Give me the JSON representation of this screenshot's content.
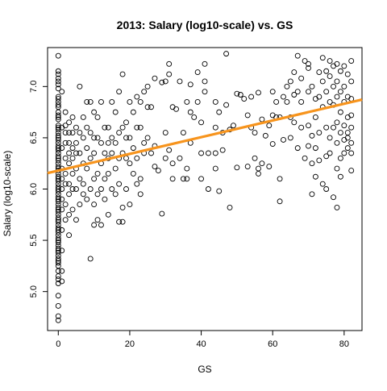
{
  "chart_data": {
    "type": "scatter",
    "title": "2013: Salary (log10-scale) vs. GS",
    "xlabel": "GS",
    "ylabel": "Salary (log10-scale)",
    "xlim": [
      -3,
      85
    ],
    "ylim": [
      4.62,
      7.38
    ],
    "x_ticks": [
      0,
      20,
      40,
      60,
      80
    ],
    "y_ticks": [
      5.0,
      5.5,
      6.0,
      6.5,
      7.0
    ],
    "grid": false,
    "legend": "none",
    "point_color": "#000000",
    "fit_line": {
      "color": "#f7941d",
      "intercept": 6.18,
      "slope": 0.00815
    },
    "points": [
      [
        0,
        7.3
      ],
      [
        0,
        7.15
      ],
      [
        0,
        7.12
      ],
      [
        0,
        7.08
      ],
      [
        0,
        7.05
      ],
      [
        0,
        7.02
      ],
      [
        0,
        6.98
      ],
      [
        0,
        6.9
      ],
      [
        0,
        6.88
      ],
      [
        0,
        6.85
      ],
      [
        0,
        6.82
      ],
      [
        0,
        6.8
      ],
      [
        0,
        6.75
      ],
      [
        0,
        6.72
      ],
      [
        0,
        6.7
      ],
      [
        0,
        6.68
      ],
      [
        0,
        6.62
      ],
      [
        0,
        6.6
      ],
      [
        0,
        6.58
      ],
      [
        0,
        6.55
      ],
      [
        0,
        6.52
      ],
      [
        0,
        6.5
      ],
      [
        0,
        6.48
      ],
      [
        0,
        6.45
      ],
      [
        0,
        6.42
      ],
      [
        0,
        6.4
      ],
      [
        0,
        6.38
      ],
      [
        0,
        6.35
      ],
      [
        0,
        6.32
      ],
      [
        0,
        6.3
      ],
      [
        0,
        6.28
      ],
      [
        0,
        6.25
      ],
      [
        0,
        6.22
      ],
      [
        0,
        6.2
      ],
      [
        0,
        6.18
      ],
      [
        0,
        6.15
      ],
      [
        0,
        6.12
      ],
      [
        0,
        6.1
      ],
      [
        0,
        6.08
      ],
      [
        0,
        6.05
      ],
      [
        0,
        6.02
      ],
      [
        0,
        6.0
      ],
      [
        0,
        5.98
      ],
      [
        0,
        5.95
      ],
      [
        0,
        5.92
      ],
      [
        0,
        5.9
      ],
      [
        0,
        5.88
      ],
      [
        0,
        5.85
      ],
      [
        0,
        5.82
      ],
      [
        0,
        5.8
      ],
      [
        0,
        5.78
      ],
      [
        0,
        5.75
      ],
      [
        0,
        5.72
      ],
      [
        0,
        5.7
      ],
      [
        0,
        5.68
      ],
      [
        0,
        5.65
      ],
      [
        0,
        5.62
      ],
      [
        0,
        5.6
      ],
      [
        0,
        5.58
      ],
      [
        0,
        5.55
      ],
      [
        0,
        5.52
      ],
      [
        0,
        5.5
      ],
      [
        0,
        5.48
      ],
      [
        0,
        5.45
      ],
      [
        0,
        5.42
      ],
      [
        0,
        5.4
      ],
      [
        0,
        5.38
      ],
      [
        0,
        5.35
      ],
      [
        0,
        5.32
      ],
      [
        0,
        5.3
      ],
      [
        0,
        5.28
      ],
      [
        0,
        5.25
      ],
      [
        0,
        5.2
      ],
      [
        0,
        5.15
      ],
      [
        0,
        5.12
      ],
      [
        0,
        5.08
      ],
      [
        0,
        4.96
      ],
      [
        0,
        4.86
      ],
      [
        0,
        4.76
      ],
      [
        0,
        4.72
      ],
      [
        1,
        6.95
      ],
      [
        1,
        6.6
      ],
      [
        1,
        6.4
      ],
      [
        1,
        6.2
      ],
      [
        1,
        6.1
      ],
      [
        1,
        5.9
      ],
      [
        1,
        5.8
      ],
      [
        1,
        5.6
      ],
      [
        1,
        5.4
      ],
      [
        1,
        5.2
      ],
      [
        1,
        5.1
      ],
      [
        1,
        6.0
      ],
      [
        2,
        6.75
      ],
      [
        2,
        6.62
      ],
      [
        2,
        6.55
      ],
      [
        2,
        6.45
      ],
      [
        2,
        6.3
      ],
      [
        2,
        6.15
      ],
      [
        2,
        6.05
      ],
      [
        2,
        5.85
      ],
      [
        2,
        5.7
      ],
      [
        3,
        6.65
      ],
      [
        3,
        6.55
      ],
      [
        3,
        6.45
      ],
      [
        3,
        6.35
      ],
      [
        3,
        6.25
      ],
      [
        3,
        6.05
      ],
      [
        3,
        5.95
      ],
      [
        3,
        5.75
      ],
      [
        3,
        5.55
      ],
      [
        4,
        6.7
      ],
      [
        4,
        6.55
      ],
      [
        4,
        6.4
      ],
      [
        4,
        6.3
      ],
      [
        4,
        6.15
      ],
      [
        4,
        6.0
      ],
      [
        4,
        5.8
      ],
      [
        5,
        6.6
      ],
      [
        5,
        6.45
      ],
      [
        5,
        6.35
      ],
      [
        5,
        6.2
      ],
      [
        5,
        6.0
      ],
      [
        5,
        5.7
      ],
      [
        6,
        7.0
      ],
      [
        6,
        6.55
      ],
      [
        6,
        6.35
      ],
      [
        6,
        6.1
      ],
      [
        6,
        5.85
      ],
      [
        7,
        6.7
      ],
      [
        7,
        6.5
      ],
      [
        7,
        6.25
      ],
      [
        7,
        6.05
      ],
      [
        7,
        5.95
      ],
      [
        8,
        6.85
      ],
      [
        8,
        6.6
      ],
      [
        8,
        6.4
      ],
      [
        8,
        6.2
      ],
      [
        8,
        5.9
      ],
      [
        9,
        6.85
      ],
      [
        9,
        6.55
      ],
      [
        9,
        6.3
      ],
      [
        9,
        6.0
      ],
      [
        9,
        5.32
      ],
      [
        10,
        6.75
      ],
      [
        10,
        6.5
      ],
      [
        10,
        6.35
      ],
      [
        10,
        6.1
      ],
      [
        10,
        5.85
      ],
      [
        10,
        5.65
      ],
      [
        11,
        6.7
      ],
      [
        11,
        6.5
      ],
      [
        11,
        6.15
      ],
      [
        11,
        5.95
      ],
      [
        11,
        5.7
      ],
      [
        12,
        6.85
      ],
      [
        12,
        6.45
      ],
      [
        12,
        6.25
      ],
      [
        12,
        6.0
      ],
      [
        12,
        5.65
      ],
      [
        13,
        6.6
      ],
      [
        13,
        6.35
      ],
      [
        13,
        6.1
      ],
      [
        13,
        5.9
      ],
      [
        14,
        6.6
      ],
      [
        14,
        6.45
      ],
      [
        14,
        6.3
      ],
      [
        14,
        6.15
      ],
      [
        14,
        5.75
      ],
      [
        15,
        6.85
      ],
      [
        15,
        6.5
      ],
      [
        15,
        6.35
      ],
      [
        15,
        6.0
      ],
      [
        16,
        6.75
      ],
      [
        16,
        6.45
      ],
      [
        16,
        6.2
      ],
      [
        16,
        5.95
      ],
      [
        17,
        6.95
      ],
      [
        17,
        6.55
      ],
      [
        17,
        6.3
      ],
      [
        17,
        6.05
      ],
      [
        17,
        5.68
      ],
      [
        18,
        7.12
      ],
      [
        18,
        6.6
      ],
      [
        18,
        6.35
      ],
      [
        18,
        5.82
      ],
      [
        18,
        5.68
      ],
      [
        19,
        6.65
      ],
      [
        19,
        6.5
      ],
      [
        19,
        6.3
      ],
      [
        19,
        6.0
      ],
      [
        20,
        6.85
      ],
      [
        20,
        6.5
      ],
      [
        20,
        6.25
      ],
      [
        20,
        5.85
      ],
      [
        21,
        6.75
      ],
      [
        21,
        6.4
      ],
      [
        21,
        6.15
      ],
      [
        22,
        6.9
      ],
      [
        22,
        6.6
      ],
      [
        22,
        6.3
      ],
      [
        22,
        6.05
      ],
      [
        23,
        6.85
      ],
      [
        23,
        6.6
      ],
      [
        23,
        6.1
      ],
      [
        23,
        5.95
      ],
      [
        24,
        6.95
      ],
      [
        24,
        6.45
      ],
      [
        24,
        6.35
      ],
      [
        25,
        7.0
      ],
      [
        25,
        6.8
      ],
      [
        25,
        6.5
      ],
      [
        26,
        6.8
      ],
      [
        26,
        6.35
      ],
      [
        27,
        7.08
      ],
      [
        27,
        6.42
      ],
      [
        27,
        6.22
      ],
      [
        28,
        6.18
      ],
      [
        29,
        7.04
      ],
      [
        29,
        5.76
      ],
      [
        30,
        7.05
      ],
      [
        30,
        6.55
      ],
      [
        30,
        6.3
      ],
      [
        31,
        7.22
      ],
      [
        31,
        7.12
      ],
      [
        31,
        6.38
      ],
      [
        32,
        6.8
      ],
      [
        32,
        6.25
      ],
      [
        32,
        6.1
      ],
      [
        33,
        6.78
      ],
      [
        34,
        7.05
      ],
      [
        34,
        6.3
      ],
      [
        35,
        6.55
      ],
      [
        35,
        6.1
      ],
      [
        36,
        6.85
      ],
      [
        36,
        6.2
      ],
      [
        36,
        6.1
      ],
      [
        37,
        7.02
      ],
      [
        37,
        6.75
      ],
      [
        37,
        6.45
      ],
      [
        38,
        6.7
      ],
      [
        39,
        7.14
      ],
      [
        39,
        6.85
      ],
      [
        40,
        6.65
      ],
      [
        40,
        6.35
      ],
      [
        40,
        6.1
      ],
      [
        41,
        7.22
      ],
      [
        41,
        7.05
      ],
      [
        41,
        6.95
      ],
      [
        42,
        6.35
      ],
      [
        42,
        6.0
      ],
      [
        44,
        6.85
      ],
      [
        44,
        6.6
      ],
      [
        44,
        6.35
      ],
      [
        44,
        6.2
      ],
      [
        45,
        6.75
      ],
      [
        45,
        5.98
      ],
      [
        46,
        6.55
      ],
      [
        46,
        6.38
      ],
      [
        47,
        7.32
      ],
      [
        47,
        6.82
      ],
      [
        48,
        6.58
      ],
      [
        48,
        5.82
      ],
      [
        49,
        6.62
      ],
      [
        50,
        6.93
      ],
      [
        50,
        6.21
      ],
      [
        51,
        6.92
      ],
      [
        52,
        6.88
      ],
      [
        53,
        6.72
      ],
      [
        53,
        6.22
      ],
      [
        54,
        6.6
      ],
      [
        54,
        6.9
      ],
      [
        55,
        6.55
      ],
      [
        55,
        6.3
      ],
      [
        56,
        6.94
      ],
      [
        56,
        6.2
      ],
      [
        56,
        6.15
      ],
      [
        57,
        6.68
      ],
      [
        57,
        6.25
      ],
      [
        58,
        6.52
      ],
      [
        59,
        6.62
      ],
      [
        59,
        6.22
      ],
      [
        60,
        6.95
      ],
      [
        60,
        6.72
      ],
      [
        60,
        6.44
      ],
      [
        61,
        6.85
      ],
      [
        61,
        6.7
      ],
      [
        62,
        6.7
      ],
      [
        62,
        6.1
      ],
      [
        62,
        5.88
      ],
      [
        63,
        6.9
      ],
      [
        63,
        6.48
      ],
      [
        64,
        7.0
      ],
      [
        64,
        6.85
      ],
      [
        65,
        7.05
      ],
      [
        65,
        6.7
      ],
      [
        65,
        6.5
      ],
      [
        66,
        7.14
      ],
      [
        66,
        6.92
      ],
      [
        66,
        6.65
      ],
      [
        67,
        7.3
      ],
      [
        67,
        6.95
      ],
      [
        67,
        6.4
      ],
      [
        68,
        7.08
      ],
      [
        68,
        6.85
      ],
      [
        68,
        6.6
      ],
      [
        69,
        7.25
      ],
      [
        69,
        6.3
      ],
      [
        70,
        7.22
      ],
      [
        70,
        7.18
      ],
      [
        70,
        6.95
      ],
      [
        70,
        6.62
      ],
      [
        70,
        6.42
      ],
      [
        71,
        7.0
      ],
      [
        71,
        6.52
      ],
      [
        71,
        6.25
      ],
      [
        71,
        5.95
      ],
      [
        72,
        6.88
      ],
      [
        72,
        6.7
      ],
      [
        72,
        6.4
      ],
      [
        72,
        6.12
      ],
      [
        73,
        7.14
      ],
      [
        73,
        6.9
      ],
      [
        73,
        6.55
      ],
      [
        73,
        6.28
      ],
      [
        74,
        7.28
      ],
      [
        74,
        7.05
      ],
      [
        74,
        6.8
      ],
      [
        74,
        6.05
      ],
      [
        75,
        7.15
      ],
      [
        75,
        6.95
      ],
      [
        75,
        6.6
      ],
      [
        75,
        6.32
      ],
      [
        75,
        6.0
      ],
      [
        76,
        7.25
      ],
      [
        76,
        7.1
      ],
      [
        76,
        6.85
      ],
      [
        76,
        6.5
      ],
      [
        76,
        6.35
      ],
      [
        77,
        7.2
      ],
      [
        77,
        7.0
      ],
      [
        77,
        6.82
      ],
      [
        77,
        6.6
      ],
      [
        77,
        5.92
      ],
      [
        78,
        7.22
      ],
      [
        78,
        7.05
      ],
      [
        78,
        6.9
      ],
      [
        78,
        6.65
      ],
      [
        78,
        6.45
      ],
      [
        78,
        6.2
      ],
      [
        78,
        5.82
      ],
      [
        79,
        7.15
      ],
      [
        79,
        6.95
      ],
      [
        79,
        6.75
      ],
      [
        79,
        6.55
      ],
      [
        79,
        6.3
      ],
      [
        79,
        6.12
      ],
      [
        80,
        7.2
      ],
      [
        80,
        7.0
      ],
      [
        80,
        6.85
      ],
      [
        80,
        6.62
      ],
      [
        80,
        6.48
      ],
      [
        80,
        6.35
      ],
      [
        81,
        7.12
      ],
      [
        81,
        6.9
      ],
      [
        81,
        6.7
      ],
      [
        81,
        6.5
      ],
      [
        81,
        6.4
      ],
      [
        81,
        6.55
      ],
      [
        82,
        7.25
      ],
      [
        82,
        7.05
      ],
      [
        82,
        6.88
      ],
      [
        82,
        6.72
      ],
      [
        82,
        6.6
      ],
      [
        82,
        6.45
      ],
      [
        82,
        6.35
      ],
      [
        82,
        6.18
      ]
    ]
  }
}
